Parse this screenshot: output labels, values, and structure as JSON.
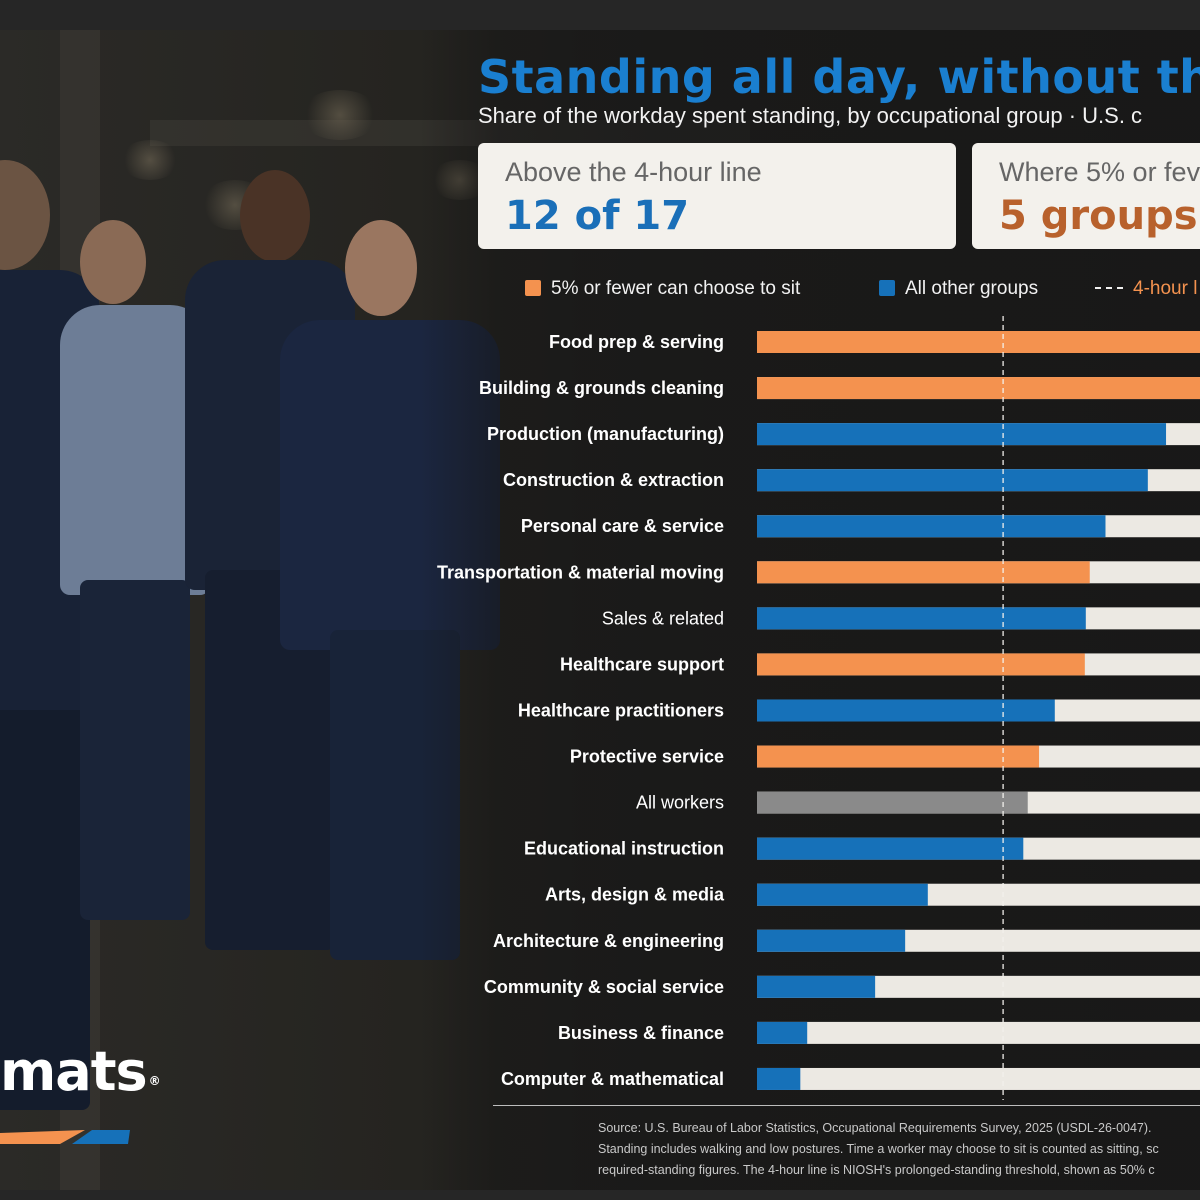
{
  "header": {
    "title": "Standing all day, without the op",
    "subtitle": "Share of the workday spent standing, by occupational group · U.S. c"
  },
  "cards": [
    {
      "label": "Above the 4-hour line",
      "value": "12 of 17",
      "color": "#1a6fb8"
    },
    {
      "label": "Where 5% or fev",
      "value": "5 groups",
      "color": "#b8612c"
    }
  ],
  "legend": {
    "orange_label": "5% or fewer can choose to sit",
    "blue_label": "All other groups",
    "line_label": "4-hour l"
  },
  "colors": {
    "orange": "#f4924f",
    "blue": "#1671b9",
    "gray": "#8a8a8a",
    "track": "#ece9e3",
    "line_label": "#f4924f"
  },
  "chart_data": {
    "type": "bar",
    "orientation": "horizontal",
    "reference_line": 50,
    "xlim": [
      0,
      90
    ],
    "categories": [
      "Food prep & serving",
      "Building & grounds cleaning",
      "Production (manufacturing)",
      "Construction & extraction",
      "Personal care & service",
      "Transportation & material moving",
      "Sales & related",
      "Healthcare support",
      "Healthcare practitioners",
      "Protective service",
      "All workers",
      "Educational instruction",
      "Arts, design & media",
      "Architecture & engineering",
      "Community & social service",
      "Business & finance",
      "Computer & mathematical"
    ],
    "values": [
      90,
      90,
      83.1,
      79.4,
      70.8,
      67.6,
      66.8,
      66.6,
      60.5,
      57.3,
      55,
      54.1,
      34.7,
      30.1,
      24,
      10.2,
      8.8
    ],
    "groups": [
      "orange",
      "orange",
      "blue",
      "blue",
      "blue",
      "orange",
      "blue",
      "orange",
      "blue",
      "orange",
      "gray",
      "blue",
      "blue",
      "blue",
      "blue",
      "blue",
      "blue"
    ],
    "bold": [
      true,
      true,
      true,
      true,
      true,
      true,
      false,
      true,
      true,
      true,
      false,
      true,
      true,
      true,
      true,
      true,
      true
    ]
  },
  "footer": {
    "line1": "Source: U.S. Bureau of Labor Statistics, Occupational Requirements Survey, 2025 (USDL-26-0047).",
    "line2": "Standing includes walking and low postures. Time a worker may choose to sit is counted as sitting, sc",
    "line3": "required-standing figures. The 4-hour line is NIOSH's prolonged-standing threshold, shown as 50% c"
  },
  "brand": {
    "name": "mats",
    "mark": "®"
  }
}
